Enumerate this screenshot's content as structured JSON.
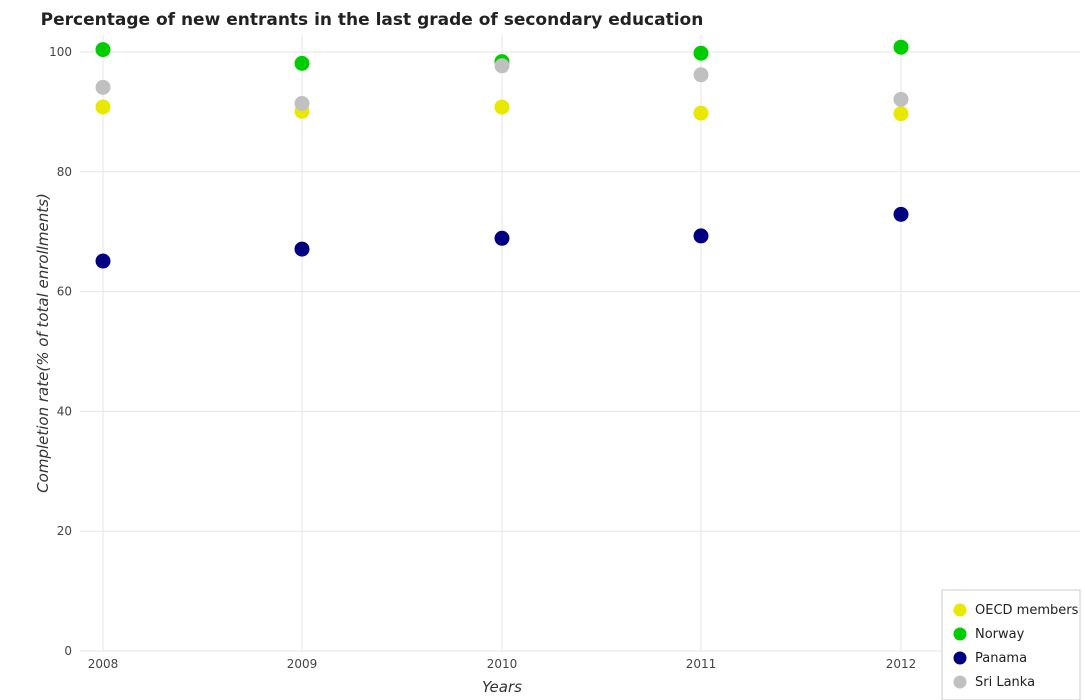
{
  "chart_data": {
    "type": "scatter",
    "title": "Percentage of new entrants in the last grade of secondary education",
    "xlabel": "Years",
    "ylabel": "Completion rate(% of total enrollments)",
    "categories": [
      "2008",
      "2009",
      "2010",
      "2011",
      "2012"
    ],
    "y_ticks": [
      0,
      20,
      40,
      60,
      80,
      100
    ],
    "ylim": [
      0,
      102.5
    ],
    "grid": true,
    "legend_position": "bottom-right",
    "series": [
      {
        "name": "OECD members",
        "color": "#e8e800",
        "values": [
          90.8,
          90.1,
          90.8,
          89.8,
          89.7
        ]
      },
      {
        "name": "Norway",
        "color": "#00cc00",
        "values": [
          100.4,
          98.1,
          98.4,
          99.8,
          100.8
        ]
      },
      {
        "name": "Panama",
        "color": "#000080",
        "values": [
          65.1,
          67.1,
          68.9,
          69.3,
          72.9
        ]
      },
      {
        "name": "Sri Lanka",
        "color": "#c0c0c0",
        "values": [
          94.1,
          91.4,
          97.7,
          96.2,
          92.1
        ]
      }
    ]
  }
}
